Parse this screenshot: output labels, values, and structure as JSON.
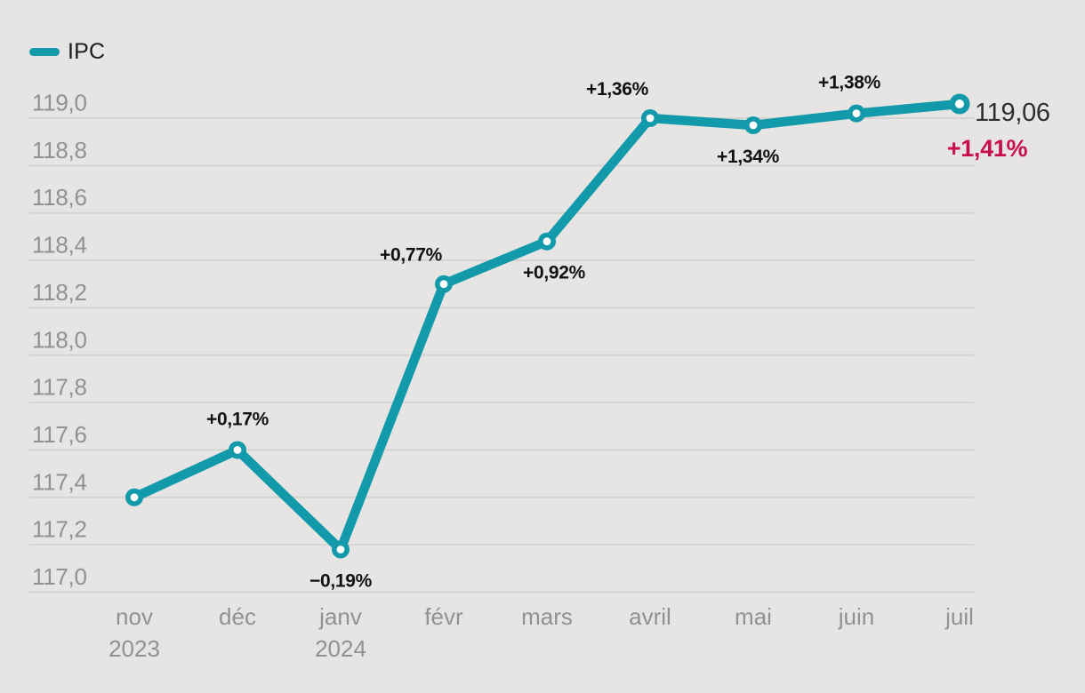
{
  "chart_data": {
    "type": "line",
    "title": "",
    "legend": [
      {
        "name": "IPC"
      }
    ],
    "legend_position": "top-left",
    "grid": "horizontal-only",
    "x": [
      "nov 2023",
      "déc",
      "janv 2024",
      "févr",
      "mars",
      "avril",
      "mai",
      "juin",
      "juil"
    ],
    "x_axis": {
      "months": [
        "nov",
        "déc",
        "janv",
        "févr",
        "mars",
        "avril",
        "mai",
        "juin",
        "juil"
      ],
      "year_marks": {
        "0": "2023",
        "2": "2024"
      }
    },
    "y_axis": {
      "min": 117.0,
      "max": 119.0,
      "step": 0.2,
      "tick_labels": [
        "119,0",
        "118,8",
        "118,6",
        "118,4",
        "118,2",
        "118,0",
        "117,8",
        "117,6",
        "117,4",
        "117,2",
        "117,0"
      ]
    },
    "ylim": [
      117.0,
      119.0
    ],
    "series": [
      {
        "name": "IPC",
        "values": [
          117.4,
          117.6,
          117.18,
          118.3,
          118.48,
          119.0,
          118.97,
          119.02,
          119.06
        ]
      }
    ],
    "point_pct_labels": [
      "",
      "+0,17%",
      "−0,19%",
      "+0,77%",
      "+0,92%",
      "+1,36%",
      "+1,34%",
      "+1,38%",
      ""
    ],
    "end_labels": {
      "value": "119,06",
      "pct": "+1,41%"
    },
    "colors": {
      "background": "#e6e5e4",
      "line": "#129aab",
      "marker_fill": "#129aab",
      "marker_hole": "#ffffff",
      "grid": "#d4d3d2",
      "axis_text": "#919191",
      "annotation_text": "#121212",
      "end_value_text": "#2e2e2e",
      "end_pct_text": "#c80d50"
    }
  }
}
